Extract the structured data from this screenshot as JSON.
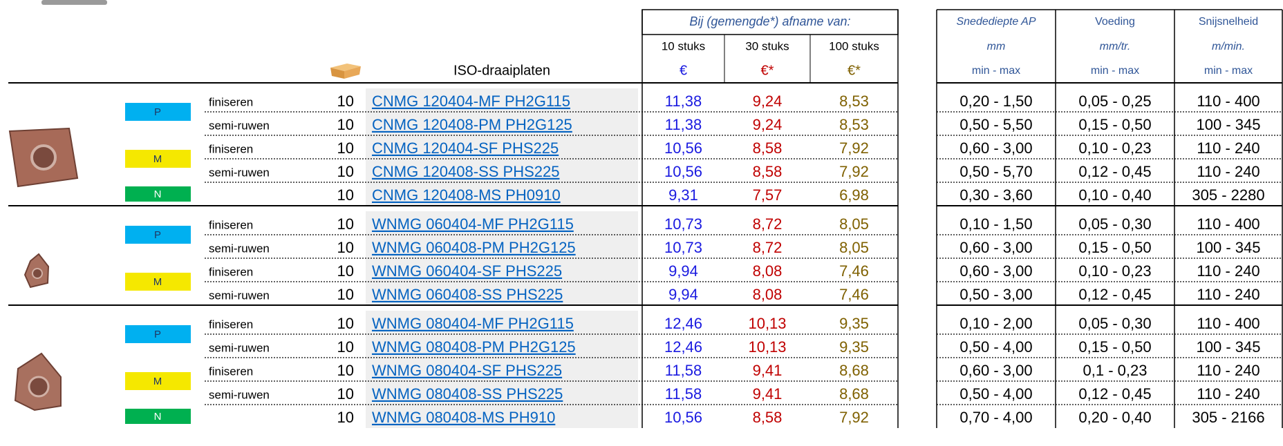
{
  "header": {
    "price_group_title": "Bij (gemengde*) afname van:",
    "price_columns": [
      {
        "quantity": "10 stuks",
        "currency": "€"
      },
      {
        "quantity": "30 stuks",
        "currency": "€*"
      },
      {
        "quantity": "100 stuks",
        "currency": "€*"
      }
    ],
    "product_column": "ISO-draaiplaten",
    "spec_columns": [
      {
        "title": "Snedediepte AP",
        "unit": "mm",
        "range": "min - max"
      },
      {
        "title": "Voeding",
        "unit": "mm/tr.",
        "range": "min - max"
      },
      {
        "title": "Snijsnelheid",
        "unit": "m/min.",
        "range": "min - max"
      }
    ]
  },
  "groups": [
    {
      "grades": [
        {
          "grade": "P",
          "rows": [
            {
              "operation": "finiseren",
              "pack": "10",
              "code": "CNMG 120404-MF PH2G115",
              "prices": [
                "11,38",
                "9,24",
                "8,53"
              ],
              "specs": [
                "0,20 - 1,50",
                "0,05 - 0,25",
                "110 - 400"
              ]
            },
            {
              "operation": "semi-ruwen",
              "pack": "10",
              "code": "CNMG 120408-PM PH2G125",
              "prices": [
                "11,38",
                "9,24",
                "8,53"
              ],
              "specs": [
                "0,50 - 5,50",
                "0,15 - 0,50",
                "100 - 345"
              ]
            }
          ]
        },
        {
          "grade": "M",
          "rows": [
            {
              "operation": "finiseren",
              "pack": "10",
              "code": "CNMG 120404-SF PHS225",
              "prices": [
                "10,56",
                "8,58",
                "7,92"
              ],
              "specs": [
                "0,60 - 3,00",
                "0,10 - 0,23",
                "110 - 240"
              ]
            },
            {
              "operation": "semi-ruwen",
              "pack": "10",
              "code": "CNMG 120408-SS PHS225",
              "prices": [
                "10,56",
                "8,58",
                "7,92"
              ],
              "specs": [
                "0,50 - 5,70",
                "0,12 - 0,45",
                "110 - 240"
              ]
            }
          ]
        },
        {
          "grade": "N",
          "rows": [
            {
              "pack": "10",
              "code": "CNMG 120408-MS PH0910",
              "prices": [
                "9,31",
                "7,57",
                "6,98"
              ],
              "specs": [
                "0,30 - 3,60",
                "0,10 - 0,40",
                "305 - 2280"
              ]
            }
          ]
        }
      ]
    },
    {
      "grades": [
        {
          "grade": "P",
          "rows": [
            {
              "operation": "finiseren",
              "pack": "10",
              "code": "WNMG 060404-MF PH2G115",
              "prices": [
                "10,73",
                "8,72",
                "8,05"
              ],
              "specs": [
                "0,10 - 1,50",
                "0,05 - 0,30",
                "110 - 400"
              ]
            },
            {
              "operation": "semi-ruwen",
              "pack": "10",
              "code": "WNMG 060408-PM PH2G125",
              "prices": [
                "10,73",
                "8,72",
                "8,05"
              ],
              "specs": [
                "0,60 - 3,00",
                "0,15 - 0,50",
                "100 - 345"
              ]
            }
          ]
        },
        {
          "grade": "M",
          "rows": [
            {
              "operation": "finiseren",
              "pack": "10",
              "code": "WNMG 060404-SF PHS225",
              "prices": [
                "9,94",
                "8,08",
                "7,46"
              ],
              "specs": [
                "0,60 - 3,00",
                "0,10 - 0,23",
                "110 - 240"
              ]
            },
            {
              "operation": "semi-ruwen",
              "pack": "10",
              "code": "WNMG 060408-SS PHS225",
              "prices": [
                "9,94",
                "8,08",
                "7,46"
              ],
              "specs": [
                "0,50 - 3,00",
                "0,12 - 0,45",
                "110 - 240"
              ]
            }
          ]
        }
      ]
    },
    {
      "grades": [
        {
          "grade": "P",
          "rows": [
            {
              "operation": "finiseren",
              "pack": "10",
              "code": "WNMG 080404-MF PH2G115",
              "prices": [
                "12,46",
                "10,13",
                "9,35"
              ],
              "specs": [
                "0,10 - 2,00",
                "0,05 - 0,30",
                "110 - 400"
              ]
            },
            {
              "operation": "semi-ruwen",
              "pack": "10",
              "code": "WNMG 080408-PM PH2G125",
              "prices": [
                "12,46",
                "10,13",
                "9,35"
              ],
              "specs": [
                "0,50 - 4,00",
                "0,15 - 0,50",
                "100 - 345"
              ]
            }
          ]
        },
        {
          "grade": "M",
          "rows": [
            {
              "operation": "finiseren",
              "pack": "10",
              "code": "WNMG 080404-SF PHS225",
              "prices": [
                "11,58",
                "9,41",
                "8,68"
              ],
              "specs": [
                "0,60 - 3,00",
                "0,1 - 0,23",
                "110 - 240"
              ]
            },
            {
              "operation": "semi-ruwen",
              "pack": "10",
              "code": "WNMG 080408-SS PHS225",
              "prices": [
                "11,58",
                "9,41",
                "8,68"
              ],
              "specs": [
                "0,50 - 4,00",
                "0,12 - 0,45",
                "110 - 240"
              ]
            }
          ]
        },
        {
          "grade": "N",
          "rows": [
            {
              "pack": "10",
              "code": "WNMG 080408-MS PH910",
              "prices": [
                "10,56",
                "8,58",
                "7,92"
              ],
              "specs": [
                "0,70 - 4,00",
                "0,20 - 0,40",
                "305 - 2166"
              ]
            }
          ]
        }
      ]
    }
  ]
}
